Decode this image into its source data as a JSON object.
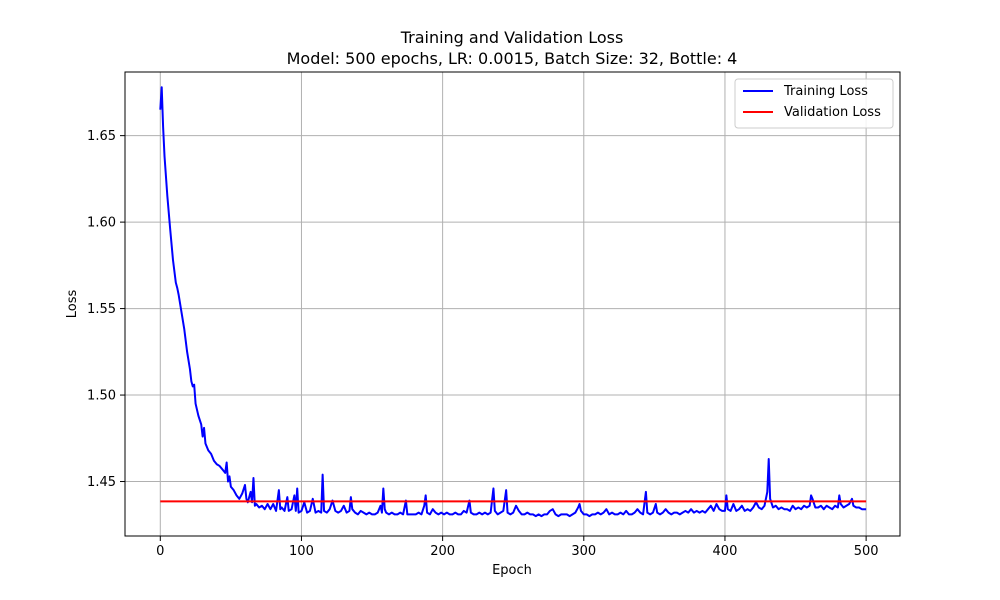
{
  "chart_data": {
    "type": "line",
    "title": "Training and Validation Loss",
    "subtitle": "Model: 500 epochs, LR: 0.0015, Batch Size: 32, Bottle: 4",
    "xlabel": "Epoch",
    "ylabel": "Loss",
    "xlim": [
      -25,
      524
    ],
    "ylim": [
      1.4185,
      1.6868
    ],
    "xticks": [
      0,
      100,
      200,
      300,
      400,
      500
    ],
    "yticks": [
      1.45,
      1.5,
      1.55,
      1.6,
      1.65
    ],
    "xtick_labels": [
      "0",
      "100",
      "200",
      "300",
      "400",
      "500"
    ],
    "ytick_labels": [
      "1.45",
      "1.50",
      "1.55",
      "1.60",
      "1.65"
    ],
    "grid": true,
    "legend_position": "top-right",
    "series": [
      {
        "name": "Training Loss",
        "color": "#0000ff",
        "points": [
          [
            0,
            1.665
          ],
          [
            1,
            1.678
          ],
          [
            2,
            1.655
          ],
          [
            3,
            1.638
          ],
          [
            5,
            1.615
          ],
          [
            7,
            1.596
          ],
          [
            9,
            1.578
          ],
          [
            11,
            1.565
          ],
          [
            12,
            1.562
          ],
          [
            13,
            1.558
          ],
          [
            15,
            1.548
          ],
          [
            17,
            1.538
          ],
          [
            19,
            1.525
          ],
          [
            21,
            1.515
          ],
          [
            22,
            1.508
          ],
          [
            23,
            1.505
          ],
          [
            24,
            1.506
          ],
          [
            25,
            1.495
          ],
          [
            27,
            1.488
          ],
          [
            29,
            1.483
          ],
          [
            30,
            1.476
          ],
          [
            31,
            1.481
          ],
          [
            32,
            1.472
          ],
          [
            34,
            1.468
          ],
          [
            36,
            1.466
          ],
          [
            38,
            1.462
          ],
          [
            40,
            1.46
          ],
          [
            42,
            1.459
          ],
          [
            44,
            1.457
          ],
          [
            46,
            1.455
          ],
          [
            47,
            1.461
          ],
          [
            48,
            1.45
          ],
          [
            49,
            1.453
          ],
          [
            50,
            1.447
          ],
          [
            52,
            1.445
          ],
          [
            54,
            1.442
          ],
          [
            56,
            1.44
          ],
          [
            58,
            1.443
          ],
          [
            60,
            1.448
          ],
          [
            61,
            1.44
          ],
          [
            62,
            1.438
          ],
          [
            64,
            1.444
          ],
          [
            65,
            1.438
          ],
          [
            66,
            1.452
          ],
          [
            67,
            1.436
          ],
          [
            68,
            1.437
          ],
          [
            70,
            1.435
          ],
          [
            72,
            1.436
          ],
          [
            74,
            1.434
          ],
          [
            76,
            1.437
          ],
          [
            78,
            1.434
          ],
          [
            80,
            1.437
          ],
          [
            82,
            1.433
          ],
          [
            84,
            1.445
          ],
          [
            85,
            1.434
          ],
          [
            86,
            1.435
          ],
          [
            88,
            1.433
          ],
          [
            90,
            1.441
          ],
          [
            91,
            1.433
          ],
          [
            93,
            1.434
          ],
          [
            95,
            1.442
          ],
          [
            96,
            1.433
          ],
          [
            97,
            1.446
          ],
          [
            98,
            1.432
          ],
          [
            100,
            1.433
          ],
          [
            102,
            1.438
          ],
          [
            104,
            1.432
          ],
          [
            106,
            1.433
          ],
          [
            108,
            1.44
          ],
          [
            110,
            1.432
          ],
          [
            112,
            1.433
          ],
          [
            114,
            1.432
          ],
          [
            115,
            1.454
          ],
          [
            116,
            1.433
          ],
          [
            118,
            1.432
          ],
          [
            120,
            1.434
          ],
          [
            122,
            1.439
          ],
          [
            124,
            1.433
          ],
          [
            126,
            1.432
          ],
          [
            128,
            1.433
          ],
          [
            130,
            1.436
          ],
          [
            132,
            1.432
          ],
          [
            134,
            1.433
          ],
          [
            135,
            1.441
          ],
          [
            136,
            1.434
          ],
          [
            138,
            1.432
          ],
          [
            140,
            1.431
          ],
          [
            142,
            1.433
          ],
          [
            144,
            1.432
          ],
          [
            146,
            1.431
          ],
          [
            148,
            1.432
          ],
          [
            150,
            1.431
          ],
          [
            152,
            1.431
          ],
          [
            154,
            1.432
          ],
          [
            156,
            1.436
          ],
          [
            157,
            1.432
          ],
          [
            158,
            1.446
          ],
          [
            159,
            1.434
          ],
          [
            160,
            1.432
          ],
          [
            162,
            1.431
          ],
          [
            164,
            1.432
          ],
          [
            166,
            1.431
          ],
          [
            168,
            1.431
          ],
          [
            170,
            1.432
          ],
          [
            172,
            1.431
          ],
          [
            174,
            1.439
          ],
          [
            175,
            1.431
          ],
          [
            177,
            1.431
          ],
          [
            179,
            1.431
          ],
          [
            181,
            1.431
          ],
          [
            183,
            1.432
          ],
          [
            185,
            1.431
          ],
          [
            187,
            1.436
          ],
          [
            188,
            1.442
          ],
          [
            189,
            1.432
          ],
          [
            191,
            1.431
          ],
          [
            193,
            1.434
          ],
          [
            195,
            1.432
          ],
          [
            197,
            1.431
          ],
          [
            199,
            1.432
          ],
          [
            201,
            1.431
          ],
          [
            203,
            1.432
          ],
          [
            205,
            1.431
          ],
          [
            207,
            1.431
          ],
          [
            209,
            1.432
          ],
          [
            211,
            1.431
          ],
          [
            213,
            1.431
          ],
          [
            215,
            1.433
          ],
          [
            217,
            1.432
          ],
          [
            219,
            1.439
          ],
          [
            220,
            1.432
          ],
          [
            222,
            1.431
          ],
          [
            224,
            1.431
          ],
          [
            226,
            1.432
          ],
          [
            228,
            1.431
          ],
          [
            230,
            1.432
          ],
          [
            232,
            1.431
          ],
          [
            234,
            1.432
          ],
          [
            236,
            1.446
          ],
          [
            237,
            1.433
          ],
          [
            239,
            1.431
          ],
          [
            241,
            1.432
          ],
          [
            243,
            1.433
          ],
          [
            245,
            1.445
          ],
          [
            246,
            1.432
          ],
          [
            248,
            1.431
          ],
          [
            250,
            1.432
          ],
          [
            252,
            1.436
          ],
          [
            254,
            1.433
          ],
          [
            256,
            1.431
          ],
          [
            258,
            1.431
          ],
          [
            260,
            1.432
          ],
          [
            262,
            1.431
          ],
          [
            264,
            1.431
          ],
          [
            266,
            1.43
          ],
          [
            268,
            1.431
          ],
          [
            270,
            1.43
          ],
          [
            272,
            1.431
          ],
          [
            274,
            1.431
          ],
          [
            276,
            1.433
          ],
          [
            278,
            1.434
          ],
          [
            280,
            1.431
          ],
          [
            282,
            1.43
          ],
          [
            284,
            1.431
          ],
          [
            286,
            1.431
          ],
          [
            288,
            1.431
          ],
          [
            290,
            1.43
          ],
          [
            292,
            1.431
          ],
          [
            294,
            1.432
          ],
          [
            296,
            1.435
          ],
          [
            297,
            1.437
          ],
          [
            298,
            1.433
          ],
          [
            300,
            1.431
          ],
          [
            302,
            1.431
          ],
          [
            304,
            1.43
          ],
          [
            306,
            1.431
          ],
          [
            308,
            1.431
          ],
          [
            310,
            1.432
          ],
          [
            312,
            1.431
          ],
          [
            314,
            1.432
          ],
          [
            316,
            1.434
          ],
          [
            318,
            1.431
          ],
          [
            320,
            1.432
          ],
          [
            322,
            1.431
          ],
          [
            324,
            1.431
          ],
          [
            326,
            1.432
          ],
          [
            328,
            1.431
          ],
          [
            330,
            1.433
          ],
          [
            332,
            1.431
          ],
          [
            334,
            1.431
          ],
          [
            336,
            1.432
          ],
          [
            338,
            1.434
          ],
          [
            340,
            1.432
          ],
          [
            342,
            1.431
          ],
          [
            344,
            1.444
          ],
          [
            345,
            1.432
          ],
          [
            347,
            1.431
          ],
          [
            349,
            1.432
          ],
          [
            351,
            1.437
          ],
          [
            352,
            1.432
          ],
          [
            354,
            1.431
          ],
          [
            356,
            1.432
          ],
          [
            358,
            1.434
          ],
          [
            360,
            1.432
          ],
          [
            362,
            1.431
          ],
          [
            364,
            1.432
          ],
          [
            366,
            1.432
          ],
          [
            368,
            1.431
          ],
          [
            370,
            1.432
          ],
          [
            372,
            1.433
          ],
          [
            374,
            1.432
          ],
          [
            376,
            1.434
          ],
          [
            378,
            1.432
          ],
          [
            380,
            1.433
          ],
          [
            382,
            1.432
          ],
          [
            384,
            1.433
          ],
          [
            386,
            1.432
          ],
          [
            388,
            1.434
          ],
          [
            390,
            1.436
          ],
          [
            392,
            1.433
          ],
          [
            394,
            1.437
          ],
          [
            396,
            1.434
          ],
          [
            398,
            1.433
          ],
          [
            400,
            1.433
          ],
          [
            401,
            1.442
          ],
          [
            402,
            1.434
          ],
          [
            404,
            1.433
          ],
          [
            406,
            1.437
          ],
          [
            408,
            1.433
          ],
          [
            410,
            1.434
          ],
          [
            412,
            1.436
          ],
          [
            414,
            1.433
          ],
          [
            416,
            1.434
          ],
          [
            418,
            1.433
          ],
          [
            420,
            1.435
          ],
          [
            422,
            1.438
          ],
          [
            424,
            1.435
          ],
          [
            426,
            1.434
          ],
          [
            428,
            1.436
          ],
          [
            430,
            1.444
          ],
          [
            431,
            1.463
          ],
          [
            432,
            1.44
          ],
          [
            434,
            1.435
          ],
          [
            436,
            1.436
          ],
          [
            438,
            1.434
          ],
          [
            440,
            1.435
          ],
          [
            442,
            1.434
          ],
          [
            444,
            1.434
          ],
          [
            446,
            1.433
          ],
          [
            448,
            1.436
          ],
          [
            450,
            1.434
          ],
          [
            452,
            1.435
          ],
          [
            454,
            1.434
          ],
          [
            456,
            1.436
          ],
          [
            458,
            1.435
          ],
          [
            460,
            1.436
          ],
          [
            461,
            1.442
          ],
          [
            462,
            1.44
          ],
          [
            464,
            1.435
          ],
          [
            466,
            1.435
          ],
          [
            468,
            1.436
          ],
          [
            470,
            1.434
          ],
          [
            472,
            1.436
          ],
          [
            474,
            1.435
          ],
          [
            476,
            1.434
          ],
          [
            478,
            1.436
          ],
          [
            480,
            1.435
          ],
          [
            481,
            1.442
          ],
          [
            482,
            1.437
          ],
          [
            484,
            1.435
          ],
          [
            486,
            1.436
          ],
          [
            488,
            1.437
          ],
          [
            490,
            1.44
          ],
          [
            491,
            1.436
          ],
          [
            493,
            1.435
          ],
          [
            495,
            1.435
          ],
          [
            497,
            1.434
          ],
          [
            499,
            1.434
          ],
          [
            500,
            1.434
          ]
        ]
      },
      {
        "name": "Validation Loss",
        "color": "#ff0000",
        "points": [
          [
            0,
            1.4385
          ],
          [
            500,
            1.4385
          ]
        ]
      }
    ]
  }
}
